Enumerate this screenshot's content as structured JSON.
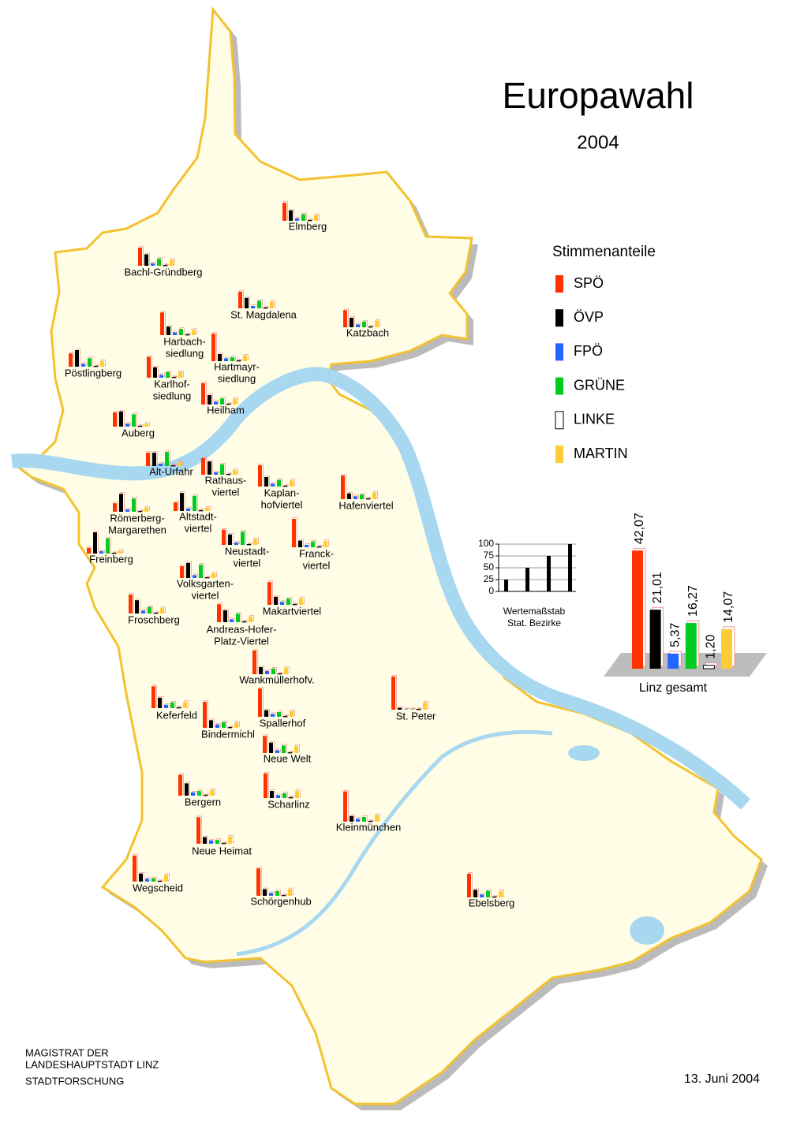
{
  "title": "Europawahl",
  "subtitle": "2004",
  "legend": {
    "title": "Stimmenanteile",
    "parties": [
      {
        "name": "SPÖ",
        "color": "#ff3300"
      },
      {
        "name": "ÖVP",
        "color": "#000000"
      },
      {
        "name": "FPÖ",
        "color": "#2266ff"
      },
      {
        "name": "GRÜNE",
        "color": "#00cc22"
      },
      {
        "name": "LINKE",
        "color": "#ffffff"
      },
      {
        "name": "MARTIN",
        "color": "#ffcc33"
      }
    ]
  },
  "districts": [
    {
      "name": [
        "Elmberg"
      ],
      "values": [
        38,
        22,
        5,
        14,
        1,
        12
      ]
    },
    {
      "name": [
        "Bachl-Gründberg"
      ],
      "values": [
        38,
        24,
        5,
        15,
        1,
        12
      ]
    },
    {
      "name": [
        "St. Magdalena"
      ],
      "values": [
        35,
        22,
        5,
        16,
        1,
        14
      ]
    },
    {
      "name": [
        "Katzbach"
      ],
      "values": [
        36,
        20,
        6,
        12,
        1,
        14
      ]
    },
    {
      "name": [
        "Harbach-",
        "siedlung"
      ],
      "values": [
        48,
        18,
        6,
        13,
        1,
        11
      ]
    },
    {
      "name": [
        "Pöstlingberg"
      ],
      "values": [
        28,
        35,
        6,
        18,
        1,
        12
      ]
    },
    {
      "name": [
        "Karlhof-",
        "siedlung"
      ],
      "values": [
        44,
        22,
        6,
        12,
        1,
        12
      ]
    },
    {
      "name": [
        "Hartmayr-",
        "siedlung"
      ],
      "values": [
        58,
        15,
        6,
        8,
        1,
        12
      ]
    },
    {
      "name": [
        "Heilham"
      ],
      "values": [
        45,
        20,
        6,
        13,
        1,
        12
      ]
    },
    {
      "name": [
        "Auberg"
      ],
      "values": [
        30,
        32,
        6,
        26,
        1,
        6
      ]
    },
    {
      "name": [
        "Alt-Urfahr"
      ],
      "values": [
        28,
        28,
        5,
        30,
        1,
        8
      ]
    },
    {
      "name": [
        "Rathaus-",
        "viertel"
      ],
      "values": [
        35,
        28,
        5,
        22,
        1,
        10
      ]
    },
    {
      "name": [
        "Kaplan-",
        "hofviertel"
      ],
      "values": [
        45,
        20,
        6,
        14,
        1,
        13
      ]
    },
    {
      "name": [
        "Hafenviertel"
      ],
      "values": [
        50,
        12,
        6,
        10,
        1,
        14
      ]
    },
    {
      "name": [
        "Römerberg-",
        "Margarethen"
      ],
      "values": [
        18,
        38,
        5,
        28,
        1,
        9
      ]
    },
    {
      "name": [
        "Altstadt-",
        "viertel"
      ],
      "values": [
        18,
        38,
        5,
        32,
        1,
        7
      ]
    },
    {
      "name": [
        "Freinberg"
      ],
      "values": [
        12,
        45,
        5,
        32,
        1,
        6
      ]
    },
    {
      "name": [
        "Neustadt-",
        "viertel"
      ],
      "values": [
        32,
        22,
        5,
        28,
        1,
        12
      ]
    },
    {
      "name": [
        "Franck-",
        "viertel"
      ],
      "values": [
        60,
        14,
        5,
        12,
        1,
        13
      ]
    },
    {
      "name": [
        "Volksgarten-",
        "viertel"
      ],
      "values": [
        25,
        32,
        6,
        28,
        1,
        10
      ]
    },
    {
      "name": [
        "Froschberg"
      ],
      "values": [
        40,
        28,
        6,
        14,
        1,
        11
      ]
    },
    {
      "name": [
        "Makartviertel"
      ],
      "values": [
        48,
        17,
        6,
        13,
        1,
        14
      ]
    },
    {
      "name": [
        "Andreas-Hofer-",
        "Platz-Viertel"
      ],
      "values": [
        38,
        25,
        6,
        18,
        1,
        12
      ]
    },
    {
      "name": [
        "Wankmüllerhofv."
      ],
      "values": [
        50,
        15,
        7,
        12,
        1,
        14
      ]
    },
    {
      "name": [
        "Keferfeld"
      ],
      "values": [
        46,
        22,
        7,
        12,
        1,
        13
      ]
    },
    {
      "name": [
        "Spallerhof"
      ],
      "values": [
        60,
        14,
        6,
        10,
        1,
        12
      ]
    },
    {
      "name": [
        "Bindermichl"
      ],
      "values": [
        55,
        16,
        7,
        12,
        1,
        11
      ]
    },
    {
      "name": [
        "St. Peter"
      ],
      "values": [
        70,
        4,
        1,
        1,
        1,
        15
      ]
    },
    {
      "name": [
        "Neue Welt"
      ],
      "values": [
        36,
        22,
        6,
        16,
        1,
        15
      ]
    },
    {
      "name": [
        "Bergern"
      ],
      "values": [
        44,
        26,
        7,
        10,
        1,
        12
      ]
    },
    {
      "name": [
        "Scharlinz"
      ],
      "values": [
        52,
        15,
        6,
        10,
        1,
        15
      ]
    },
    {
      "name": [
        "Kleinmünchen"
      ],
      "values": [
        64,
        12,
        6,
        10,
        1,
        14
      ]
    },
    {
      "name": [
        "Neue Heimat"
      ],
      "values": [
        56,
        14,
        7,
        8,
        1,
        15
      ]
    },
    {
      "name": [
        "Wegscheid"
      ],
      "values": [
        55,
        17,
        6,
        7,
        1,
        14
      ]
    },
    {
      "name": [
        "Schörgenhub"
      ],
      "values": [
        58,
        14,
        6,
        10,
        1,
        14
      ]
    },
    {
      "name": [
        "Ebelsberg"
      ],
      "values": [
        50,
        16,
        6,
        14,
        1,
        13
      ]
    }
  ],
  "scale": {
    "ylim": [
      0,
      100
    ],
    "yticks": [
      0,
      25,
      50,
      75,
      100
    ],
    "values": [
      25,
      50,
      75,
      100
    ],
    "label": [
      "Wertemaßstab",
      "Stat. Bezirke"
    ]
  },
  "total": {
    "label": "Linz gesamt",
    "values": [
      42.07,
      21.01,
      5.37,
      16.27,
      1.2,
      14.07
    ],
    "value_labels": [
      "42,07",
      "21,01",
      "5,37",
      "16,27",
      "1,20",
      "14,07"
    ]
  },
  "footer": {
    "lines": [
      "MAGISTRAT  DER",
      "LANDESHAUPTSTADT  LINZ",
      "STADTFORSCHUNG"
    ],
    "date": "13. Juni 2004"
  }
}
